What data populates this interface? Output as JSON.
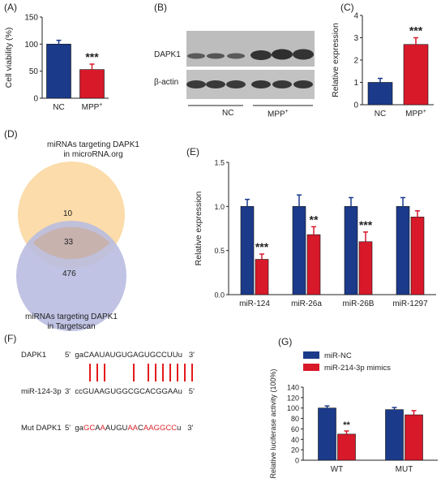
{
  "colors": {
    "blue": "#1b3a8a",
    "red": "#d7192a",
    "circle_top": "#fbdcaa",
    "circle_bottom": "#b9bde0",
    "line_red": "#e31a1c"
  },
  "panel_labels": {
    "a": "(A)",
    "b": "(B)",
    "c": "(C)",
    "d": "(D)",
    "e": "(E)",
    "f": "(F)",
    "g": "(G)"
  },
  "chart_data": [
    {
      "id": "A",
      "type": "bar",
      "categories": [
        "NC",
        "MPP+"
      ],
      "values": [
        100,
        53
      ],
      "errors": [
        7,
        10
      ],
      "ylabel": "Cell viability (%)",
      "ylim": [
        0,
        150
      ],
      "yticks": [
        "0",
        "50",
        "100",
        "150"
      ],
      "annotations": [
        "",
        "***"
      ]
    },
    {
      "id": "C",
      "type": "bar",
      "categories": [
        "NC",
        "MPP+"
      ],
      "values": [
        1.0,
        2.7
      ],
      "errors": [
        0.18,
        0.3
      ],
      "ylabel": "Relative expression",
      "ylim": [
        0,
        4
      ],
      "yticks": [
        "0",
        "1",
        "2",
        "3",
        "4"
      ],
      "annotations": [
        "",
        "***"
      ]
    },
    {
      "id": "E",
      "type": "bar",
      "categories": [
        "miR-124",
        "miR-26a",
        "miR-26B",
        "miR-1297"
      ],
      "series": [
        {
          "values": [
            1.0,
            1.0,
            1.0,
            1.0
          ],
          "errors": [
            0.08,
            0.13,
            0.1,
            0.1
          ]
        },
        {
          "values": [
            0.4,
            0.68,
            0.6,
            0.88
          ],
          "errors": [
            0.06,
            0.09,
            0.11,
            0.07
          ]
        }
      ],
      "ylabel": "Relative expression",
      "ylim": [
        0,
        1.5
      ],
      "yticks": [
        "0.0",
        "0.5",
        "1.0",
        "1.5"
      ],
      "annotations": [
        "***",
        "**",
        "***",
        ""
      ]
    },
    {
      "id": "G",
      "type": "bar",
      "categories": [
        "WT",
        "MUT"
      ],
      "series": [
        {
          "name": "miR-NC",
          "values": [
            100,
            97
          ],
          "errors": [
            4,
            4
          ]
        },
        {
          "name": "miR-214-3p mimics",
          "values": [
            50,
            87
          ],
          "errors": [
            6,
            8
          ]
        }
      ],
      "ylabel": "Relative luciferase activity (100%)",
      "ylim": [
        0,
        140
      ],
      "yticks": [
        "0",
        "20",
        "40",
        "60",
        "80",
        "100",
        "120",
        "140"
      ],
      "annotations": [
        "**",
        ""
      ],
      "legend": "top"
    }
  ],
  "western_blot": {
    "rows": [
      "DAPK1",
      "β-actin"
    ],
    "groups": [
      "NC",
      "MPP+"
    ]
  },
  "venn": {
    "top_title_line1": "miRNAs  targeting DAPK1",
    "top_title_line2": "in microRNA.org",
    "bottom_title_line1": "miRNAs  targeting DAPK1",
    "bottom_title_line2": "in Targetscan",
    "top_only": "10",
    "overlap": "33",
    "bottom_only": "476"
  },
  "sequences": {
    "row1_label": "DAPK1",
    "row1_prefix": "5'  ga",
    "row1_seq": "CAAUAUGUGAGUGCCUUu",
    "row1_suffix": "3'",
    "row2_label": "miR-124-3p",
    "row2_seq": "3'  ccGUAAGUGGCGCACGGAAu   5'",
    "row3_label": "Mut DAPK1",
    "row3_seq_parts": [
      "5'  ga",
      "GC",
      "A",
      "A",
      "AUGU",
      "AA",
      "C",
      "AAGGCC",
      "u   3'"
    ]
  }
}
